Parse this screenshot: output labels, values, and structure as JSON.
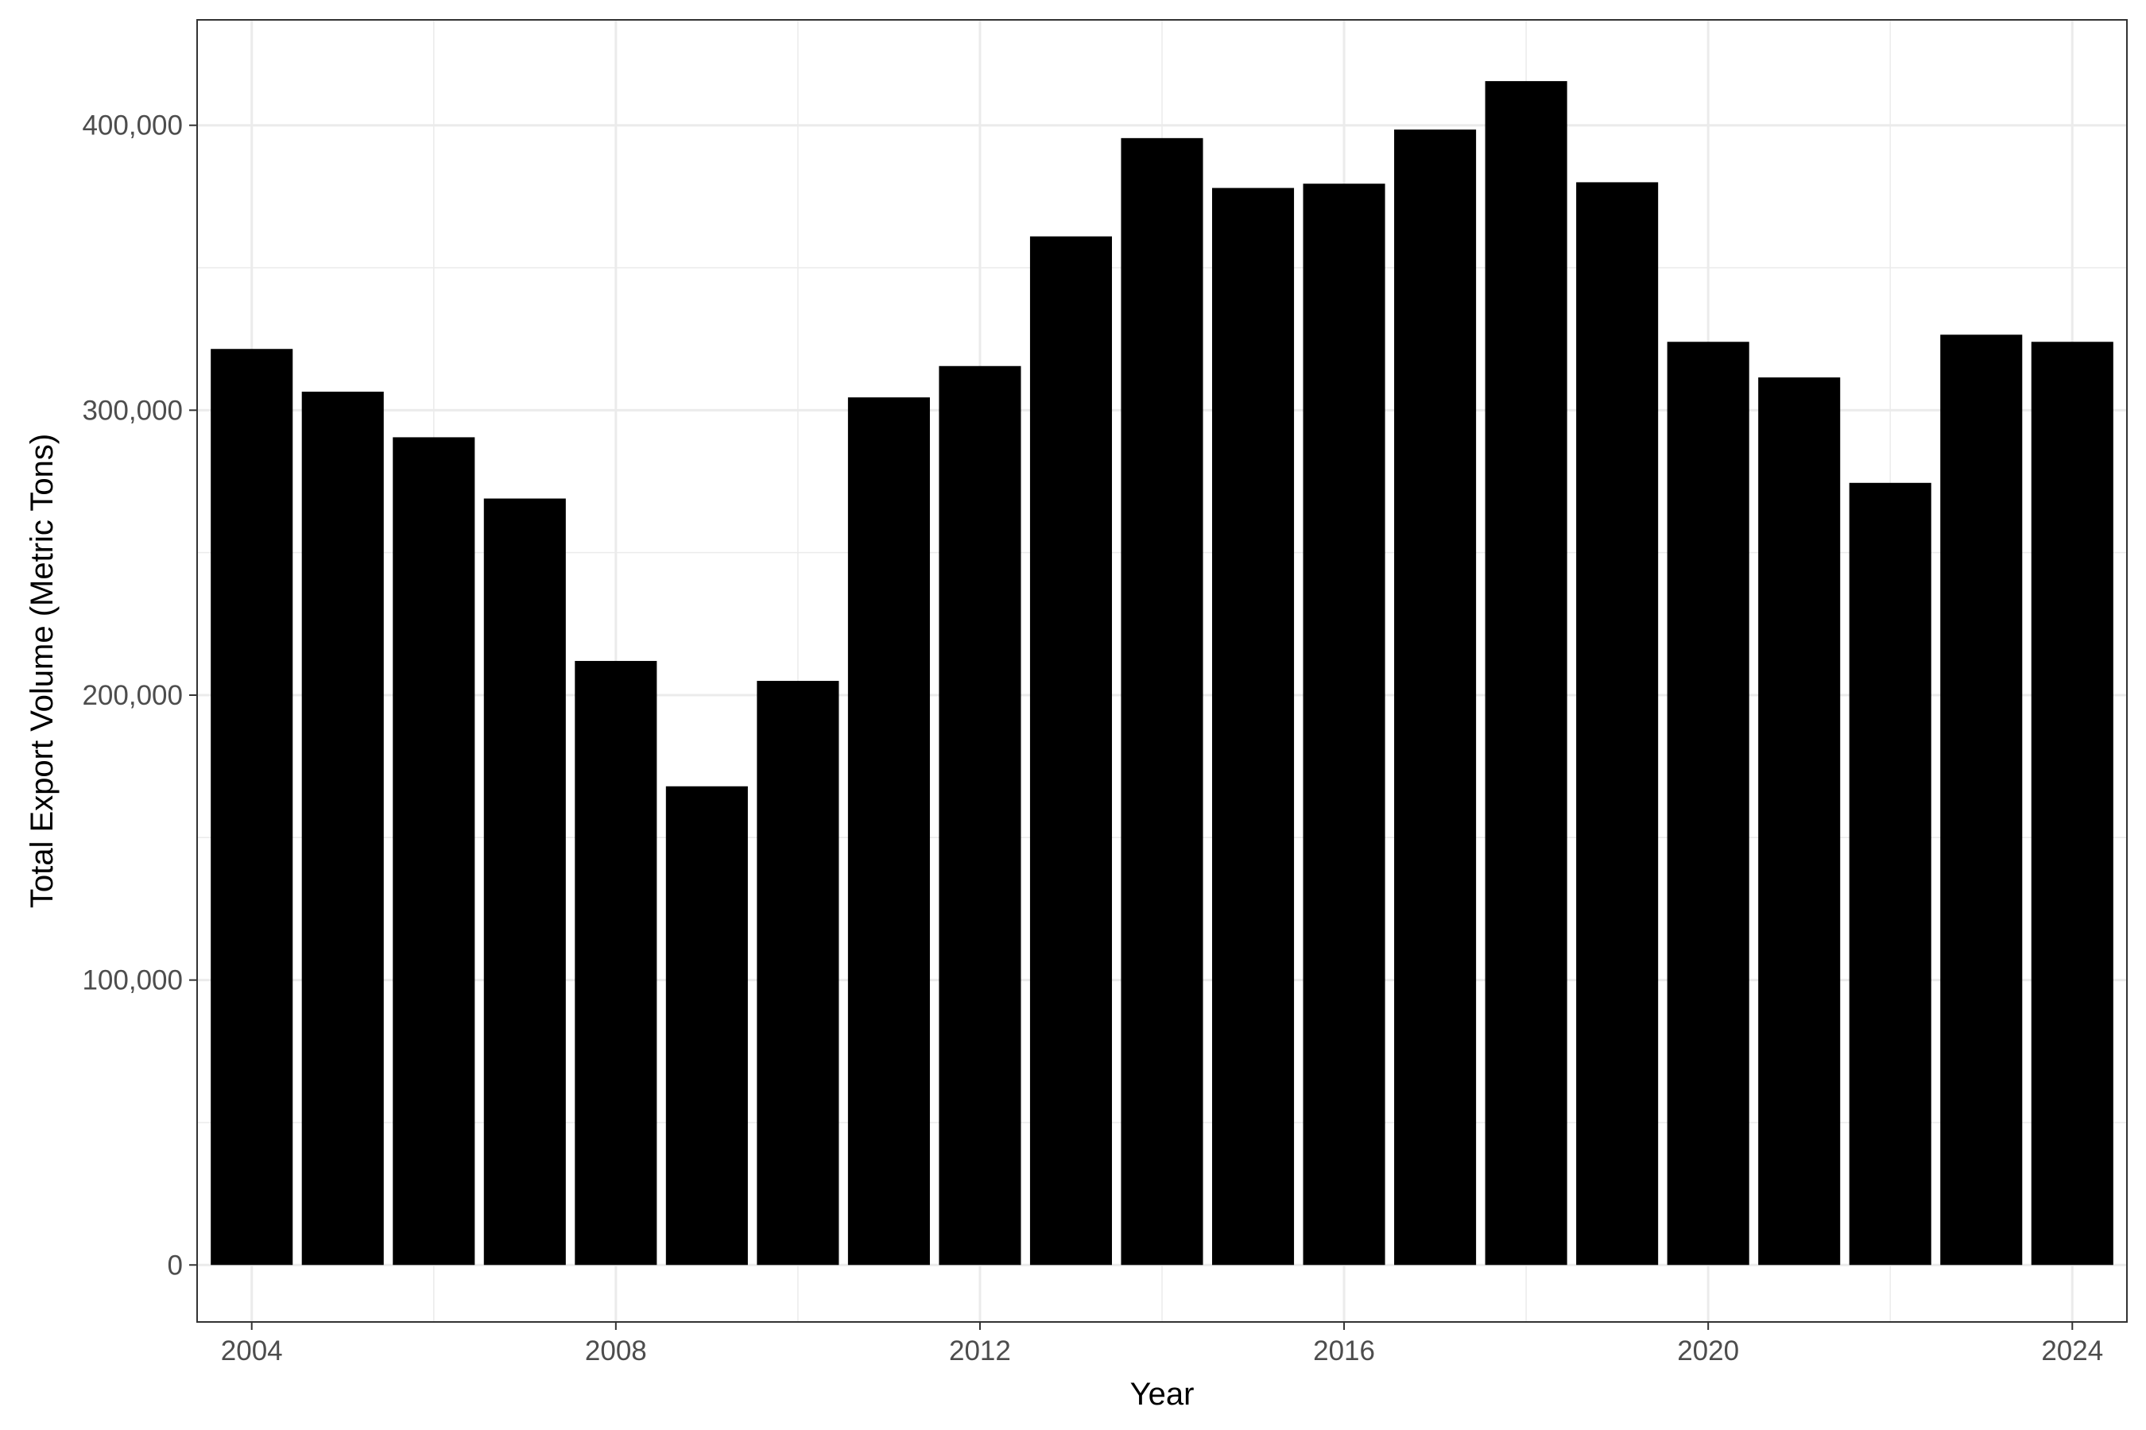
{
  "chart_data": {
    "type": "bar",
    "title": "",
    "xlabel": "Year",
    "ylabel": "Total Export Volume (Metric Tons)",
    "x": [
      2004,
      2005,
      2006,
      2007,
      2008,
      2009,
      2010,
      2011,
      2012,
      2013,
      2014,
      2015,
      2016,
      2017,
      2018,
      2019,
      2020,
      2021,
      2022,
      2023,
      2024
    ],
    "values": [
      321500,
      306500,
      290500,
      269000,
      212000,
      168000,
      205000,
      304500,
      315500,
      361000,
      395500,
      378000,
      379500,
      398500,
      415500,
      380000,
      324000,
      311500,
      274500,
      326500,
      324000
    ],
    "xlim": [
      2003.4,
      2024.6
    ],
    "ylim": [
      -20000,
      437000
    ],
    "x_ticks": [
      2004,
      2008,
      2012,
      2016,
      2020,
      2024
    ],
    "x_tick_labels": [
      "2004",
      "2008",
      "2012",
      "2016",
      "2020",
      "2024"
    ],
    "y_ticks": [
      0,
      100000,
      200000,
      300000,
      400000
    ],
    "y_tick_labels": [
      "0",
      "100,000",
      "200,000",
      "300,000",
      "400,000"
    ],
    "bar_color": "#000000",
    "grid": true,
    "legend": "none"
  }
}
